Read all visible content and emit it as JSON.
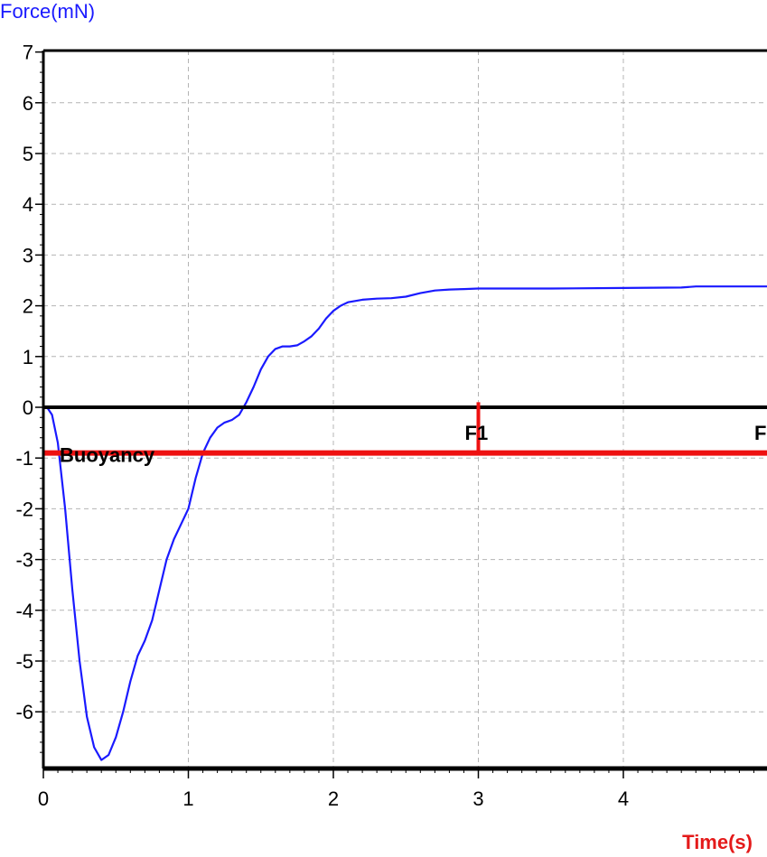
{
  "chart_data": {
    "type": "line",
    "ylabel": "Force(mN)",
    "xlabel": "Time(s)",
    "xlim": [
      0,
      5
    ],
    "ylim": [
      -7,
      7
    ],
    "x_ticks": [
      "0",
      "1",
      "2",
      "3",
      "4"
    ],
    "y_ticks": [
      "7",
      "6",
      "5",
      "4",
      "3",
      "2",
      "1",
      "0",
      "-1",
      "-2",
      "-3",
      "-4",
      "-5",
      "-6"
    ],
    "grid": true,
    "colors": {
      "series": "#1a1aff",
      "ylabel": "#1a1aff",
      "xlabel": "#e41a1a",
      "buoyancy": "#ee1111",
      "zero_line": "#000000",
      "grid": "#b4b4b4"
    },
    "series": [
      {
        "points": [
          [
            0,
            0.0
          ],
          [
            0.03,
            -0.02
          ],
          [
            0.06,
            -0.15
          ],
          [
            0.1,
            -0.7
          ],
          [
            0.15,
            -2.0
          ],
          [
            0.2,
            -3.6
          ],
          [
            0.25,
            -5.0
          ],
          [
            0.3,
            -6.1
          ],
          [
            0.35,
            -6.7
          ],
          [
            0.4,
            -6.95
          ],
          [
            0.45,
            -6.85
          ],
          [
            0.5,
            -6.5
          ],
          [
            0.55,
            -6.0
          ],
          [
            0.6,
            -5.4
          ],
          [
            0.65,
            -4.9
          ],
          [
            0.7,
            -4.6
          ],
          [
            0.75,
            -4.2
          ],
          [
            0.8,
            -3.6
          ],
          [
            0.85,
            -3.0
          ],
          [
            0.9,
            -2.6
          ],
          [
            0.95,
            -2.3
          ],
          [
            1.0,
            -2.0
          ],
          [
            1.05,
            -1.4
          ],
          [
            1.1,
            -0.9
          ],
          [
            1.15,
            -0.6
          ],
          [
            1.2,
            -0.4
          ],
          [
            1.25,
            -0.3
          ],
          [
            1.3,
            -0.25
          ],
          [
            1.35,
            -0.15
          ],
          [
            1.4,
            0.1
          ],
          [
            1.45,
            0.4
          ],
          [
            1.5,
            0.75
          ],
          [
            1.55,
            1.0
          ],
          [
            1.6,
            1.15
          ],
          [
            1.65,
            1.2
          ],
          [
            1.7,
            1.2
          ],
          [
            1.75,
            1.22
          ],
          [
            1.8,
            1.3
          ],
          [
            1.85,
            1.4
          ],
          [
            1.9,
            1.55
          ],
          [
            1.95,
            1.75
          ],
          [
            2.0,
            1.9
          ],
          [
            2.05,
            2.0
          ],
          [
            2.1,
            2.07
          ],
          [
            2.2,
            2.12
          ],
          [
            2.3,
            2.14
          ],
          [
            2.4,
            2.15
          ],
          [
            2.5,
            2.18
          ],
          [
            2.6,
            2.25
          ],
          [
            2.7,
            2.3
          ],
          [
            2.8,
            2.32
          ],
          [
            2.9,
            2.33
          ],
          [
            3.0,
            2.34
          ],
          [
            3.5,
            2.34
          ],
          [
            4.0,
            2.35
          ],
          [
            4.4,
            2.36
          ],
          [
            4.5,
            2.38
          ],
          [
            5.0,
            2.38
          ]
        ]
      }
    ],
    "annotations": {
      "buoyancy_label": "Buoyancy",
      "buoyancy_value": -0.9,
      "marker_label": "F1",
      "marker_x": 3,
      "marker_top": 0.1,
      "edge_label": "F"
    }
  }
}
